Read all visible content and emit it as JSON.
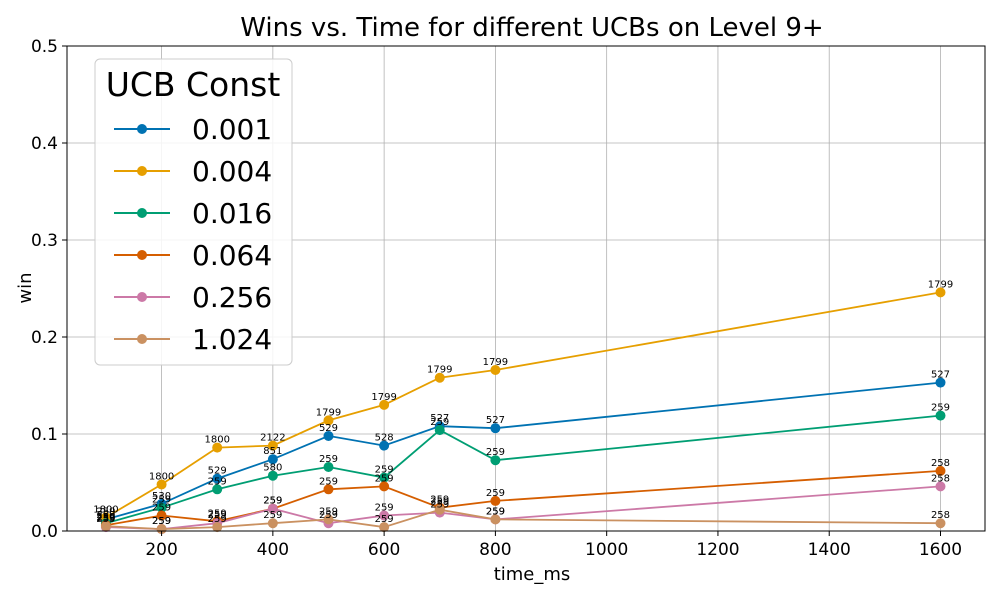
{
  "chart_data": {
    "type": "line",
    "title": "Wins vs. Time for different UCBs on Level 9+",
    "xlabel": "time_ms",
    "ylabel": "win",
    "xlim": [
      30,
      1680
    ],
    "ylim": [
      0,
      0.5
    ],
    "xticks": [
      200,
      400,
      600,
      800,
      1000,
      1200,
      1400,
      1600
    ],
    "yticks": [
      0.0,
      0.1,
      0.2,
      0.3,
      0.4,
      0.5
    ],
    "grid": true,
    "legend": {
      "title": "UCB Const",
      "placement": "top-left"
    },
    "x": [
      100,
      200,
      300,
      400,
      500,
      600,
      700,
      800,
      1600
    ],
    "series": [
      {
        "name": "0.001",
        "color": "#0072b2",
        "values": [
          0.012,
          0.028,
          0.054,
          0.074,
          0.098,
          0.088,
          0.108,
          0.106,
          0.153
        ],
        "labels": [
          "259",
          "530",
          "529",
          "851",
          "529",
          "528",
          "527",
          "527",
          "527"
        ]
      },
      {
        "name": "0.004",
        "color": "#e69f00",
        "values": [
          0.014,
          0.048,
          0.086,
          0.088,
          0.114,
          0.13,
          0.158,
          0.166,
          0.246
        ],
        "labels": [
          "1800",
          "1800",
          "1800",
          "2122",
          "1799",
          "1799",
          "1799",
          "1799",
          "1799"
        ]
      },
      {
        "name": "0.016",
        "color": "#009e73",
        "values": [
          0.008,
          0.024,
          0.043,
          0.057,
          0.066,
          0.055,
          0.104,
          0.073,
          0.119
        ],
        "labels": [
          "259",
          "259",
          "259",
          "580",
          "259",
          "259",
          "259",
          "259",
          "259"
        ]
      },
      {
        "name": "0.064",
        "color": "#d55e00",
        "values": [
          0.006,
          0.016,
          0.01,
          0.023,
          0.043,
          0.046,
          0.024,
          0.031,
          0.062
        ],
        "labels": [
          "259",
          "259",
          "259",
          "259",
          "259",
          "259",
          "259",
          "259",
          "258"
        ]
      },
      {
        "name": "0.256",
        "color": "#cc79a7",
        "values": [
          0.004,
          0.002,
          0.008,
          0.023,
          0.008,
          0.016,
          0.019,
          0.012,
          0.046
        ],
        "labels": [
          "259",
          "259",
          "259",
          "259",
          "259",
          "259",
          "259",
          "259",
          "258"
        ]
      },
      {
        "name": "1.024",
        "color": "#ca9161",
        "values": [
          0.005,
          0.002,
          0.004,
          0.008,
          0.012,
          0.004,
          0.022,
          0.012,
          0.008
        ],
        "labels": [
          "259",
          "259",
          "259",
          "259",
          "259",
          "259",
          "259",
          "259",
          "258"
        ]
      }
    ]
  }
}
